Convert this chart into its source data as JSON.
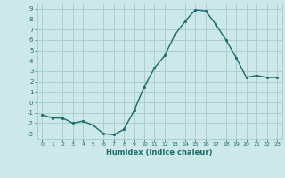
{
  "x": [
    0,
    1,
    2,
    3,
    4,
    5,
    6,
    7,
    8,
    9,
    10,
    11,
    12,
    13,
    14,
    15,
    16,
    17,
    18,
    19,
    20,
    21,
    22,
    23
  ],
  "y": [
    -1.2,
    -1.5,
    -1.5,
    -2.0,
    -1.8,
    -2.2,
    -3.0,
    -3.1,
    -2.6,
    -0.8,
    1.5,
    3.3,
    4.5,
    6.5,
    7.8,
    8.9,
    8.8,
    7.5,
    6.0,
    4.3,
    2.4,
    2.6,
    2.4,
    2.4
  ],
  "xlabel": "Humidex (Indice chaleur)",
  "bg_color": "#cce8e8",
  "grid_color": "#aacece",
  "line_color": "#1a6b6b",
  "marker_color": "#1a6b6b",
  "ylim": [
    -3.5,
    9.5
  ],
  "xlim": [
    -0.5,
    23.5
  ],
  "yticks": [
    -3,
    -2,
    -1,
    0,
    1,
    2,
    3,
    4,
    5,
    6,
    7,
    8,
    9
  ],
  "xticks": [
    0,
    1,
    2,
    3,
    4,
    5,
    6,
    7,
    8,
    9,
    10,
    11,
    12,
    13,
    14,
    15,
    16,
    17,
    18,
    19,
    20,
    21,
    22,
    23
  ]
}
